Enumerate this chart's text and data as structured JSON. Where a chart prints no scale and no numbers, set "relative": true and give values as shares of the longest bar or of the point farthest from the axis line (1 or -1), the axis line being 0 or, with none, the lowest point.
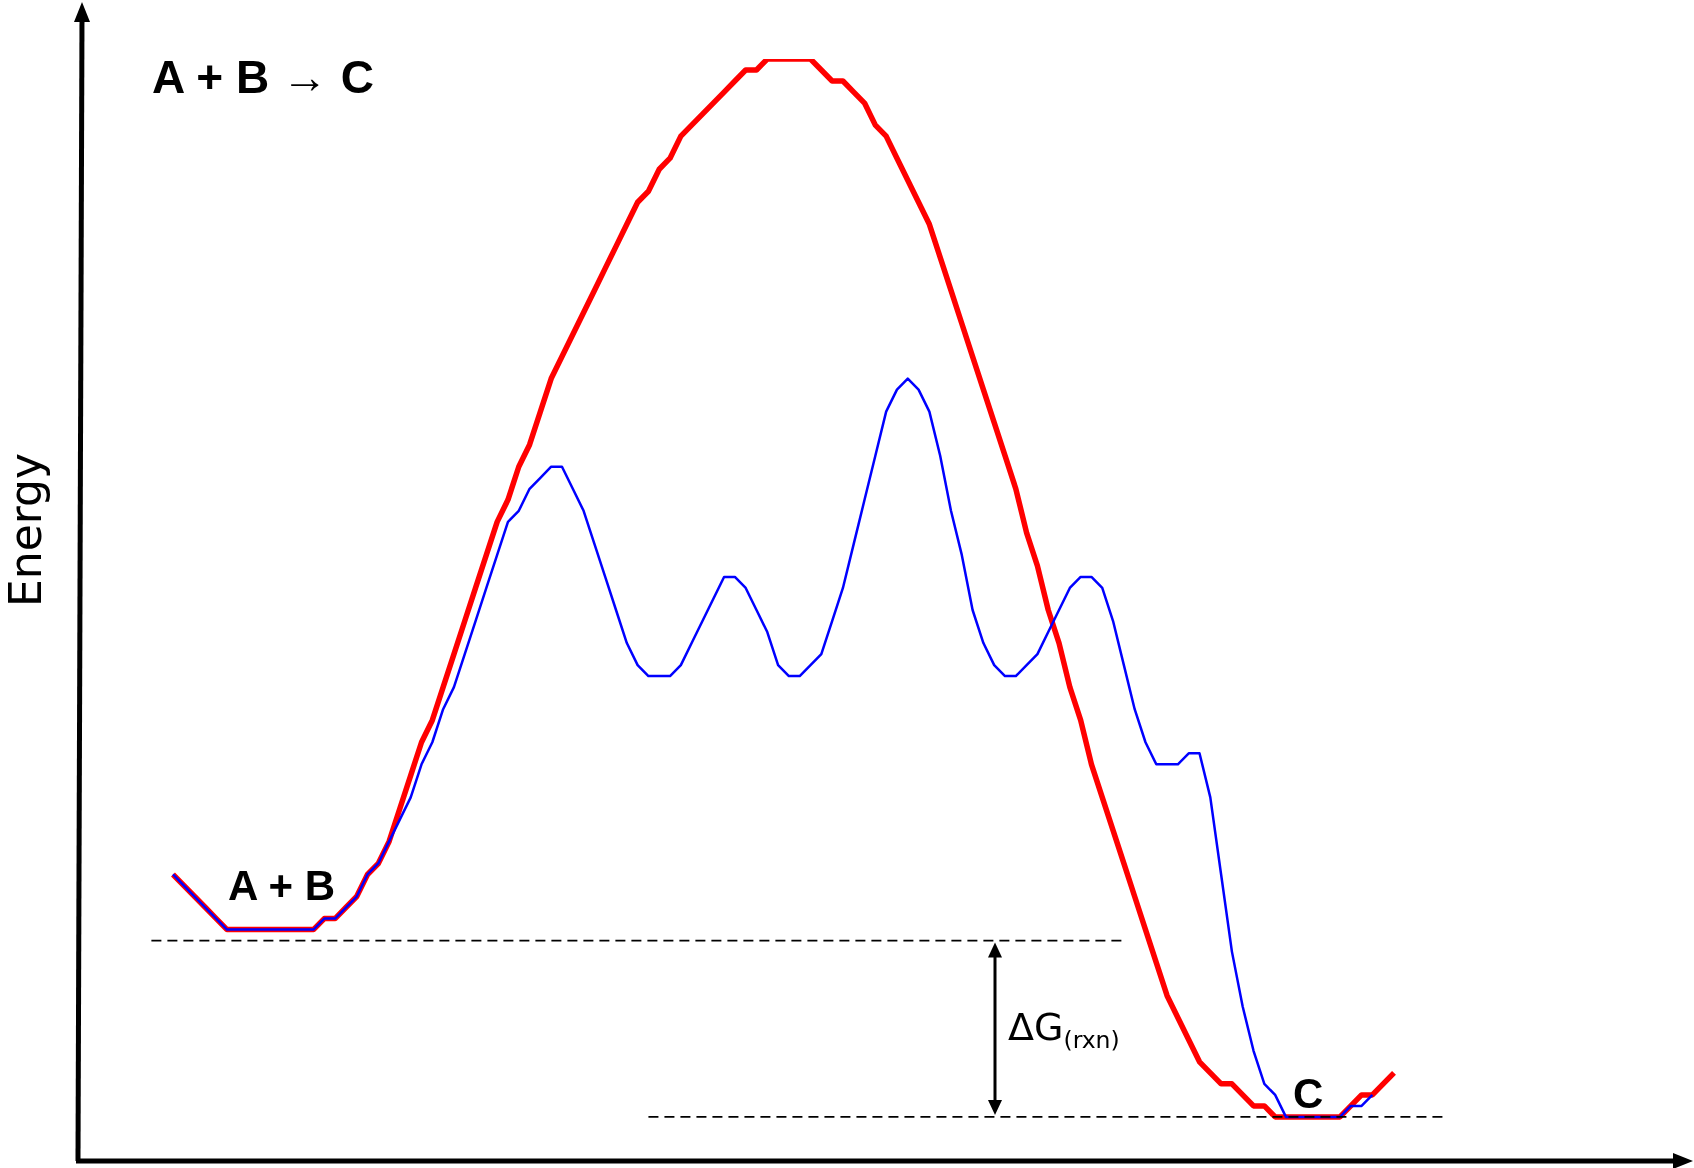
{
  "chart_data": {
    "type": "line",
    "relative": true,
    "title": "A + B → C",
    "ylabel": "Energy",
    "annotations": [
      "A + B",
      "C",
      "ΔG$_{(rxn)}$"
    ],
    "categories": [
      null,
      null,
      null,
      null,
      null,
      null,
      null,
      null,
      null,
      null,
      null,
      null,
      null,
      null,
      null,
      null,
      null,
      null,
      null,
      null,
      null,
      null,
      null,
      null,
      null,
      null,
      null,
      null,
      null,
      null,
      null,
      null,
      null,
      null,
      null,
      null,
      null,
      null,
      null,
      null,
      null,
      null,
      null,
      null,
      null,
      null,
      null,
      null,
      null,
      null,
      null,
      null,
      null,
      null,
      null,
      null,
      null,
      null,
      null,
      null,
      null,
      null,
      null,
      null,
      null,
      null,
      null,
      null,
      null,
      null,
      null,
      null,
      null,
      null,
      null,
      null,
      null,
      null,
      null,
      null,
      null,
      null,
      null,
      null,
      null,
      null,
      null,
      null,
      null,
      null,
      null,
      null,
      null,
      null,
      null,
      null,
      null,
      null,
      null,
      null,
      null,
      null,
      null,
      null,
      null,
      null,
      null,
      null,
      null,
      null,
      null,
      null,
      null,
      null
    ],
    "series": [
      {
        "color": "#ff0000",
        "values": [
          0.26,
          0.25,
          0.24,
          0.23,
          0.22,
          0.21,
          0.21,
          0.21,
          0.21,
          0.21,
          0.21,
          0.21,
          0.21,
          0.21,
          0.22,
          0.22,
          0.23,
          0.24,
          0.26,
          0.27,
          0.29,
          0.32,
          0.35,
          0.38,
          0.4,
          0.43,
          0.46,
          0.49,
          0.52,
          0.55,
          0.58,
          0.6,
          0.63,
          0.65,
          0.68,
          0.71,
          0.73,
          0.75,
          0.77,
          0.79,
          0.81,
          0.83,
          0.85,
          0.87,
          0.88,
          0.9,
          0.91,
          0.93,
          0.94,
          0.95,
          0.96,
          0.97,
          0.98,
          0.99,
          0.99,
          1.0,
          1.0,
          1.0,
          1.0,
          1.0,
          0.99,
          0.98,
          0.98,
          0.97,
          0.96,
          0.94,
          0.93,
          0.91,
          0.89,
          0.87,
          0.85,
          0.82,
          0.79,
          0.76,
          0.73,
          0.7,
          0.67,
          0.64,
          0.61,
          0.57,
          0.54,
          0.5,
          0.47,
          0.43,
          0.4,
          0.36,
          0.33,
          0.3,
          0.27,
          0.24,
          0.21,
          0.18,
          0.15,
          0.13,
          0.11,
          0.09,
          0.08,
          0.07,
          0.07,
          0.06,
          0.05,
          0.05,
          0.04,
          0.04,
          0.04,
          0.04,
          0.04,
          0.04,
          0.04,
          0.05,
          0.06,
          0.06,
          0.07,
          0.08
        ]
      },
      {
        "color": "#0000ff",
        "values": [
          0.26,
          0.25,
          0.24,
          0.23,
          0.22,
          0.21,
          0.21,
          0.21,
          0.21,
          0.21,
          0.21,
          0.21,
          0.21,
          0.21,
          0.22,
          0.22,
          0.23,
          0.24,
          0.26,
          0.27,
          0.29,
          0.31,
          0.33,
          0.36,
          0.38,
          0.41,
          0.43,
          0.46,
          0.49,
          0.52,
          0.55,
          0.58,
          0.59,
          0.61,
          0.62,
          0.63,
          0.63,
          0.61,
          0.59,
          0.56,
          0.53,
          0.5,
          0.47,
          0.45,
          0.44,
          0.44,
          0.44,
          0.45,
          0.47,
          0.49,
          0.51,
          0.53,
          0.53,
          0.52,
          0.5,
          0.48,
          0.45,
          0.44,
          0.44,
          0.45,
          0.46,
          0.49,
          0.52,
          0.56,
          0.6,
          0.64,
          0.68,
          0.7,
          0.71,
          0.7,
          0.68,
          0.64,
          0.59,
          0.55,
          0.5,
          0.47,
          0.45,
          0.44,
          0.44,
          0.45,
          0.46,
          0.48,
          0.5,
          0.52,
          0.53,
          0.53,
          0.52,
          0.49,
          0.45,
          0.41,
          0.38,
          0.36,
          0.36,
          0.36,
          0.37,
          0.37,
          0.33,
          0.26,
          0.19,
          0.14,
          0.1,
          0.07,
          0.06,
          0.04,
          0.04,
          0.04,
          0.04,
          0.04,
          0.04,
          0.05,
          0.05,
          0.06,
          null,
          null
        ]
      }
    ],
    "ref_lines": [
      {
        "axis": "y",
        "value": 0.2,
        "line_style": "dashed",
        "color": "#000000"
      },
      {
        "axis": "y",
        "value": 0.04,
        "line_style": "dashed",
        "color": "#000000"
      }
    ]
  }
}
